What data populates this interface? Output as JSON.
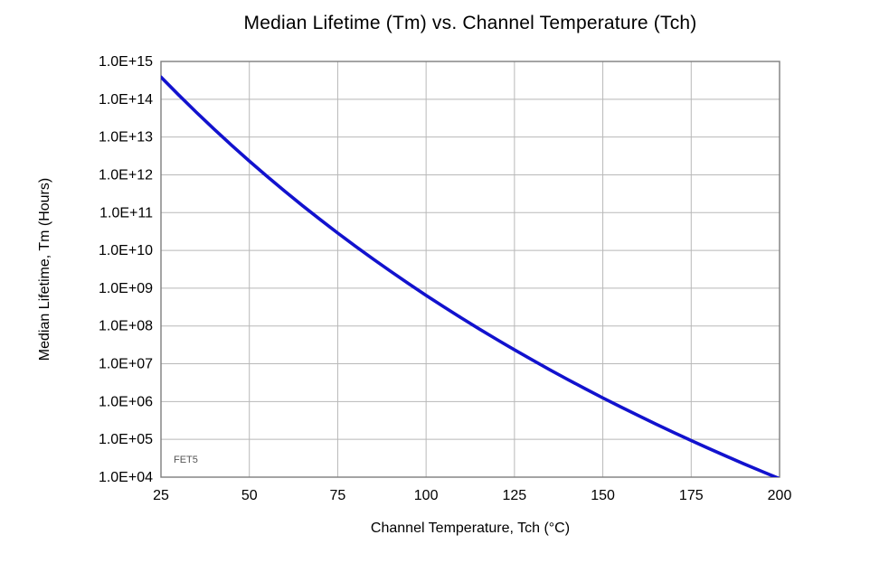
{
  "chart_data": {
    "type": "line",
    "title": "Median Lifetime (Tm) vs. Channel Temperature (Tch)",
    "xlabel": "Channel Temperature, Tch  (°C)",
    "ylabel": "Median Lifetime, Tm  (Hours)",
    "annotation": "FET5",
    "xlim": [
      25,
      200
    ],
    "ylim": [
      10000,
      1000000000000000
    ],
    "y_scale": "log",
    "grid": true,
    "legend": "none",
    "x_ticks": [
      25,
      50,
      75,
      100,
      125,
      150,
      175,
      200
    ],
    "y_tick_values": [
      10000.0,
      100000.0,
      1000000.0,
      10000000.0,
      100000000.0,
      1000000000.0,
      10000000000.0,
      100000000000.0,
      1000000000000.0,
      10000000000000.0,
      100000000000000.0,
      1000000000000000.0
    ],
    "y_tick_labels": [
      "1.0E+04",
      "1.0E+05",
      "1.0E+06",
      "1.0E+07",
      "1.0E+08",
      "1.0E+09",
      "1.0E+10",
      "1.0E+11",
      "1.0E+12",
      "1.0E+13",
      "1.0E+14",
      "1.0E+15"
    ],
    "line_color": "#1212CE",
    "grid_color": "#b8b8b8",
    "border_color": "#7d7d7d",
    "series": [
      {
        "name": "Median Lifetime Tm",
        "x": [
          25,
          30,
          35,
          40,
          45,
          50,
          55,
          60,
          65,
          70,
          75,
          80,
          85,
          90,
          95,
          100,
          105,
          110,
          115,
          120,
          125,
          130,
          135,
          140,
          145,
          150,
          155,
          160,
          165,
          170,
          175,
          180,
          185,
          190,
          195,
          200
        ],
        "y": [
          386000000000000.0,
          130000000000000.0,
          45200000000000.0,
          16300000000000.0,
          6040000000000.0,
          2310000000000.0,
          912000000000.0,
          370000000000.0,
          154000000000.0,
          65900000000.0,
          28800000000.0,
          12900000000.0,
          5930000000.0,
          2780000000.0,
          1330000000.0,
          647000000.0,
          322000000.0,
          163000000.0,
          83900000.0,
          44000000.0,
          23400000.0,
          12700000.0,
          6950000.0,
          3870000.0,
          2190000.0,
          1250000.0,
          728000.0,
          428000.0,
          254000.0,
          153000.0,
          93100.0,
          57300.0,
          35600.0,
          22300.0,
          14200.0,
          9080.0
        ]
      }
    ]
  }
}
